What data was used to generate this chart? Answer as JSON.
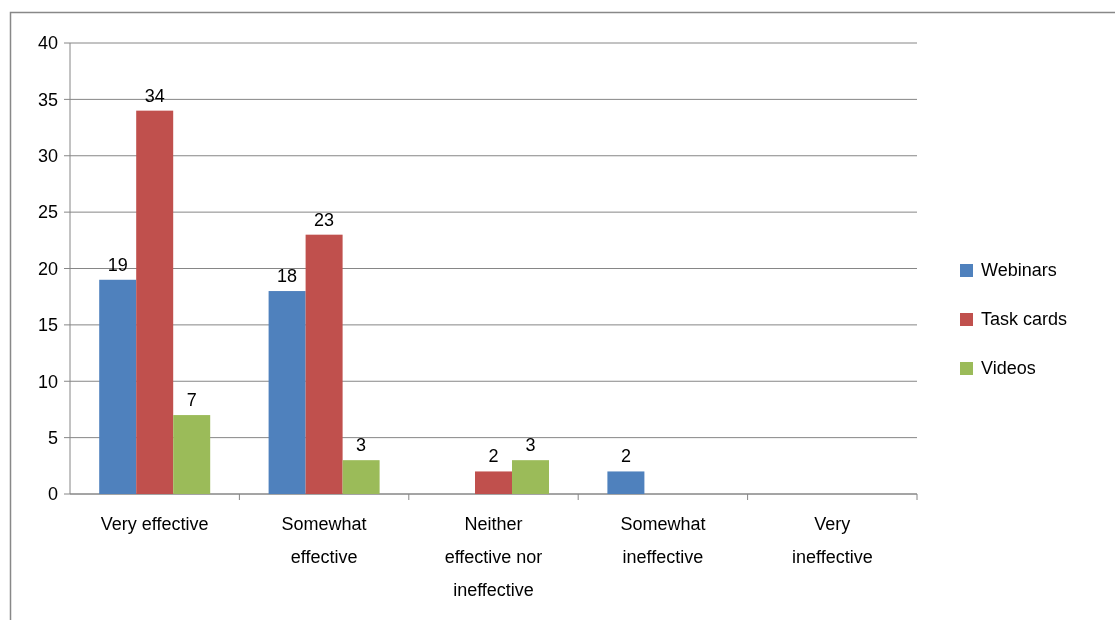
{
  "chart_data": {
    "type": "bar",
    "categories": [
      "Very effective",
      "Somewhat effective",
      "Neither effective nor ineffective",
      "Somewhat ineffective",
      "Very ineffective"
    ],
    "series": [
      {
        "name": "Webinars",
        "color": "#4f81bd",
        "values": [
          19,
          18,
          null,
          2,
          null
        ]
      },
      {
        "name": "Task cards",
        "color": "#c0504d",
        "values": [
          34,
          23,
          2,
          null,
          null
        ]
      },
      {
        "name": "Videos",
        "color": "#9bbb59",
        "values": [
          7,
          3,
          3,
          null,
          null
        ]
      }
    ],
    "ylim": [
      0,
      40
    ],
    "yticks": [
      0,
      5,
      10,
      15,
      20,
      25,
      30,
      35,
      40
    ],
    "grid": "y",
    "legend": "right",
    "data_labels": true
  }
}
